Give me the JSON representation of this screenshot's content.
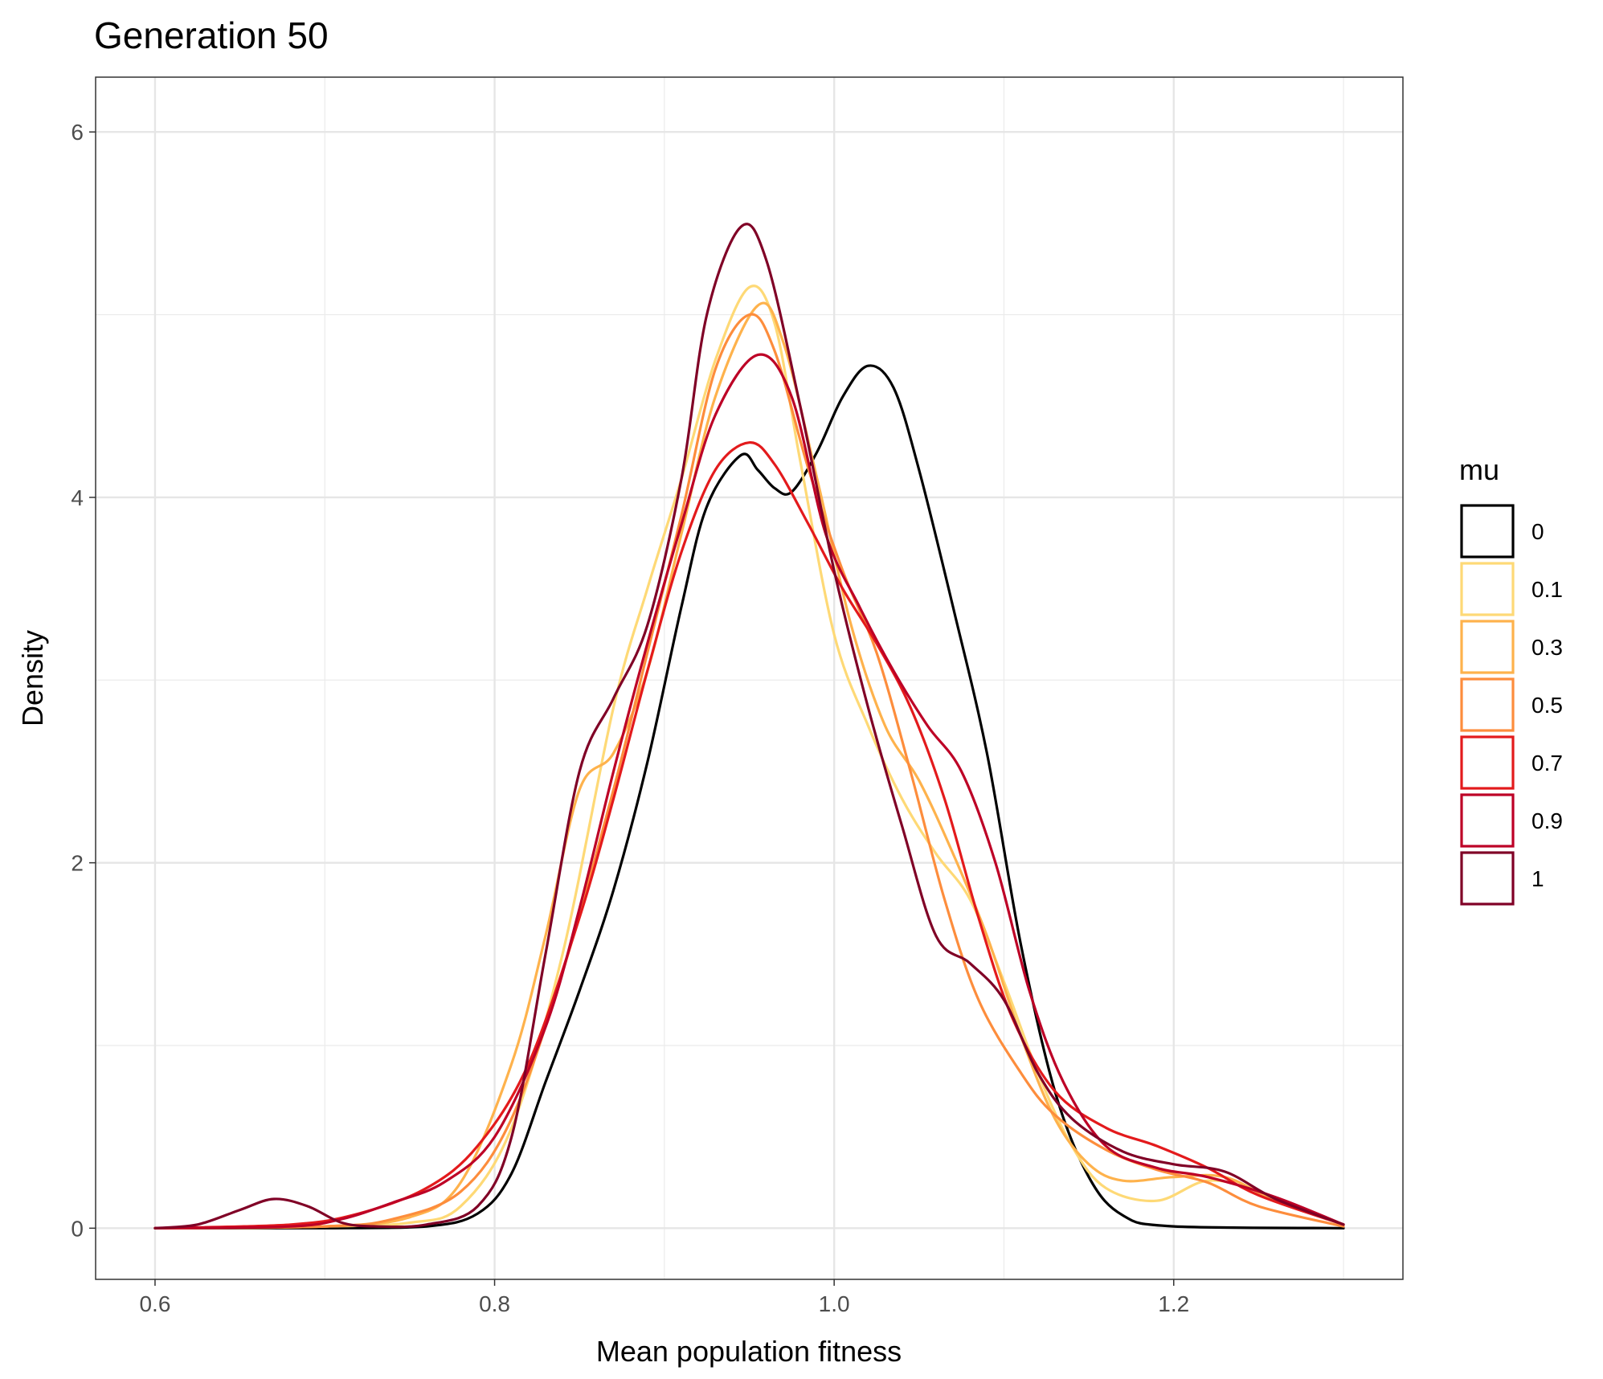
{
  "chart_data": {
    "type": "line",
    "title": "Generation 50",
    "xlabel": "Mean population fitness",
    "ylabel": "Density",
    "xlim": [
      0.565,
      1.335
    ],
    "ylim": [
      -0.28,
      6.3
    ],
    "x_ticks": [
      0.6,
      0.8,
      1.0,
      1.2
    ],
    "x_tick_labels": [
      "0.6",
      "0.8",
      "1.0",
      "1.2"
    ],
    "y_ticks": [
      0,
      2,
      4,
      6
    ],
    "y_tick_labels": [
      "0",
      "2",
      "4",
      "6"
    ],
    "grid": true,
    "legend_title": "mu",
    "legend_position": "right",
    "series": [
      {
        "name": "0",
        "color": "#000000",
        "points": [
          [
            0.6,
            0
          ],
          [
            0.7,
            0
          ],
          [
            0.76,
            0.01
          ],
          [
            0.79,
            0.08
          ],
          [
            0.81,
            0.3
          ],
          [
            0.83,
            0.8
          ],
          [
            0.85,
            1.3
          ],
          [
            0.87,
            1.85
          ],
          [
            0.89,
            2.55
          ],
          [
            0.91,
            3.4
          ],
          [
            0.925,
            3.95
          ],
          [
            0.945,
            4.23
          ],
          [
            0.955,
            4.15
          ],
          [
            0.965,
            4.05
          ],
          [
            0.975,
            4.03
          ],
          [
            0.99,
            4.25
          ],
          [
            1.005,
            4.55
          ],
          [
            1.02,
            4.72
          ],
          [
            1.035,
            4.6
          ],
          [
            1.05,
            4.15
          ],
          [
            1.07,
            3.4
          ],
          [
            1.09,
            2.6
          ],
          [
            1.11,
            1.55
          ],
          [
            1.13,
            0.75
          ],
          [
            1.15,
            0.28
          ],
          [
            1.17,
            0.07
          ],
          [
            1.2,
            0.01
          ],
          [
            1.3,
            0
          ]
        ]
      },
      {
        "name": "0.1",
        "color": "#FED976",
        "points": [
          [
            0.6,
            0
          ],
          [
            0.7,
            0.01
          ],
          [
            0.75,
            0.03
          ],
          [
            0.78,
            0.12
          ],
          [
            0.81,
            0.55
          ],
          [
            0.84,
            1.5
          ],
          [
            0.87,
            2.85
          ],
          [
            0.89,
            3.5
          ],
          [
            0.91,
            4.1
          ],
          [
            0.93,
            4.75
          ],
          [
            0.95,
            5.15
          ],
          [
            0.965,
            4.95
          ],
          [
            0.98,
            4.2
          ],
          [
            1.0,
            3.25
          ],
          [
            1.02,
            2.75
          ],
          [
            1.04,
            2.35
          ],
          [
            1.06,
            2.05
          ],
          [
            1.08,
            1.8
          ],
          [
            1.1,
            1.35
          ],
          [
            1.12,
            0.85
          ],
          [
            1.14,
            0.45
          ],
          [
            1.16,
            0.22
          ],
          [
            1.19,
            0.15
          ],
          [
            1.22,
            0.26
          ],
          [
            1.25,
            0.2
          ],
          [
            1.3,
            0.02
          ]
        ]
      },
      {
        "name": "0.3",
        "color": "#FEB24C",
        "points": [
          [
            0.6,
            0
          ],
          [
            0.7,
            0.01
          ],
          [
            0.75,
            0.06
          ],
          [
            0.78,
            0.25
          ],
          [
            0.81,
            0.9
          ],
          [
            0.83,
            1.6
          ],
          [
            0.85,
            2.4
          ],
          [
            0.87,
            2.6
          ],
          [
            0.89,
            3.05
          ],
          [
            0.91,
            3.8
          ],
          [
            0.93,
            4.55
          ],
          [
            0.955,
            5.05
          ],
          [
            0.97,
            4.85
          ],
          [
            0.99,
            4.1
          ],
          [
            1.01,
            3.3
          ],
          [
            1.03,
            2.75
          ],
          [
            1.05,
            2.45
          ],
          [
            1.07,
            2.05
          ],
          [
            1.09,
            1.6
          ],
          [
            1.11,
            1.05
          ],
          [
            1.13,
            0.6
          ],
          [
            1.15,
            0.35
          ],
          [
            1.17,
            0.26
          ],
          [
            1.2,
            0.28
          ],
          [
            1.23,
            0.28
          ],
          [
            1.26,
            0.15
          ],
          [
            1.3,
            0.02
          ]
        ]
      },
      {
        "name": "0.5",
        "color": "#FD8D3C",
        "points": [
          [
            0.6,
            0
          ],
          [
            0.7,
            0.01
          ],
          [
            0.74,
            0.05
          ],
          [
            0.78,
            0.2
          ],
          [
            0.81,
            0.6
          ],
          [
            0.84,
            1.4
          ],
          [
            0.87,
            2.4
          ],
          [
            0.89,
            3.15
          ],
          [
            0.91,
            3.9
          ],
          [
            0.93,
            4.7
          ],
          [
            0.95,
            5.0
          ],
          [
            0.965,
            4.8
          ],
          [
            0.985,
            4.15
          ],
          [
            1.005,
            3.6
          ],
          [
            1.025,
            3.15
          ],
          [
            1.045,
            2.5
          ],
          [
            1.065,
            1.8
          ],
          [
            1.085,
            1.25
          ],
          [
            1.11,
            0.85
          ],
          [
            1.13,
            0.62
          ],
          [
            1.16,
            0.43
          ],
          [
            1.19,
            0.32
          ],
          [
            1.22,
            0.25
          ],
          [
            1.25,
            0.12
          ],
          [
            1.3,
            0.01
          ]
        ]
      },
      {
        "name": "0.7",
        "color": "#E31A1C",
        "points": [
          [
            0.6,
            0
          ],
          [
            0.68,
            0.02
          ],
          [
            0.72,
            0.08
          ],
          [
            0.76,
            0.22
          ],
          [
            0.79,
            0.45
          ],
          [
            0.82,
            0.9
          ],
          [
            0.85,
            1.7
          ],
          [
            0.87,
            2.35
          ],
          [
            0.89,
            3.05
          ],
          [
            0.91,
            3.7
          ],
          [
            0.93,
            4.15
          ],
          [
            0.95,
            4.3
          ],
          [
            0.965,
            4.18
          ],
          [
            0.985,
            3.85
          ],
          [
            1.005,
            3.5
          ],
          [
            1.025,
            3.2
          ],
          [
            1.045,
            2.85
          ],
          [
            1.065,
            2.35
          ],
          [
            1.085,
            1.7
          ],
          [
            1.105,
            1.15
          ],
          [
            1.13,
            0.75
          ],
          [
            1.16,
            0.55
          ],
          [
            1.19,
            0.45
          ],
          [
            1.22,
            0.33
          ],
          [
            1.25,
            0.18
          ],
          [
            1.3,
            0.02
          ]
        ]
      },
      {
        "name": "0.9",
        "color": "#BD0026",
        "points": [
          [
            0.6,
            0
          ],
          [
            0.68,
            0.01
          ],
          [
            0.71,
            0.05
          ],
          [
            0.74,
            0.14
          ],
          [
            0.77,
            0.25
          ],
          [
            0.8,
            0.5
          ],
          [
            0.83,
            1.1
          ],
          [
            0.85,
            1.75
          ],
          [
            0.87,
            2.5
          ],
          [
            0.89,
            3.2
          ],
          [
            0.91,
            3.85
          ],
          [
            0.93,
            4.45
          ],
          [
            0.955,
            4.78
          ],
          [
            0.975,
            4.55
          ],
          [
            0.995,
            3.8
          ],
          [
            1.015,
            3.4
          ],
          [
            1.035,
            3.05
          ],
          [
            1.055,
            2.75
          ],
          [
            1.075,
            2.5
          ],
          [
            1.095,
            2.0
          ],
          [
            1.115,
            1.3
          ],
          [
            1.135,
            0.8
          ],
          [
            1.16,
            0.45
          ],
          [
            1.19,
            0.33
          ],
          [
            1.22,
            0.28
          ],
          [
            1.26,
            0.17
          ],
          [
            1.3,
            0.02
          ]
        ]
      },
      {
        "name": "1",
        "color": "#800026",
        "points": [
          [
            0.6,
            0
          ],
          [
            0.625,
            0.02
          ],
          [
            0.65,
            0.1
          ],
          [
            0.67,
            0.16
          ],
          [
            0.69,
            0.12
          ],
          [
            0.71,
            0.03
          ],
          [
            0.73,
            0.01
          ],
          [
            0.76,
            0.02
          ],
          [
            0.79,
            0.12
          ],
          [
            0.81,
            0.5
          ],
          [
            0.83,
            1.5
          ],
          [
            0.85,
            2.5
          ],
          [
            0.87,
            2.9
          ],
          [
            0.89,
            3.3
          ],
          [
            0.91,
            4.1
          ],
          [
            0.925,
            5.0
          ],
          [
            0.945,
            5.48
          ],
          [
            0.96,
            5.3
          ],
          [
            0.98,
            4.5
          ],
          [
            1.0,
            3.6
          ],
          [
            1.02,
            2.85
          ],
          [
            1.04,
            2.2
          ],
          [
            1.06,
            1.6
          ],
          [
            1.08,
            1.45
          ],
          [
            1.1,
            1.25
          ],
          [
            1.12,
            0.85
          ],
          [
            1.14,
            0.6
          ],
          [
            1.17,
            0.42
          ],
          [
            1.2,
            0.35
          ],
          [
            1.23,
            0.31
          ],
          [
            1.26,
            0.16
          ],
          [
            1.3,
            0.02
          ]
        ]
      }
    ]
  }
}
